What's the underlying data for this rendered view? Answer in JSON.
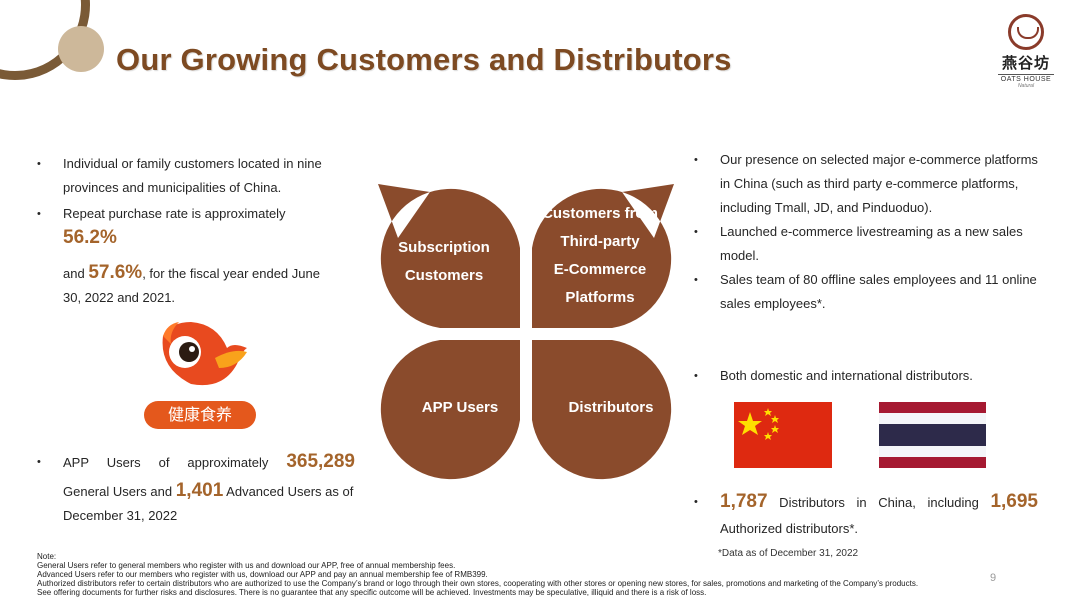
{
  "title": "Our Growing Customers and Distributors",
  "logo": {
    "cn": "燕谷坊",
    "en": "OATS HOUSE",
    "sub": "Natural"
  },
  "left": {
    "b1": "Individual or family customers located in nine provinces and municipalities of China.",
    "b2_a": "Repeat purchase rate is approximately ",
    "b2_v1": "56.2%",
    "b2_b": "and ",
    "b2_v2": "57.6%",
    "b2_c": ", for the fiscal year ended June 30, 2022 and 2021.",
    "app_badge": "健康食养",
    "b3_a": "APP Users of approximately ",
    "b3_v1": "365,289",
    "b3_b": "General Users and ",
    "b3_v2": "1,401",
    "b3_c": " Advanced Users as of December 31, 2022"
  },
  "diagram": {
    "tl": [
      "Subscription",
      "Customers"
    ],
    "tr": [
      "Customers from",
      "Third-party",
      "E-Commerce",
      "Platforms"
    ],
    "bl": "APP Users",
    "br": "Distributors",
    "color": "#8a4b2c"
  },
  "right": {
    "b1": "Our presence on selected major e-commerce platforms in China (such as third party e-commerce platforms, including Tmall, JD, and Pinduoduo).",
    "b2": "Launched e-commerce livestreaming as a new sales model.",
    "b3": "Sales team of 80 offline sales employees and 11 online sales employees*.",
    "b4": "Both domestic and international distributors.",
    "b5_v1": "1,787",
    "b5_a": " Distributors in China, including ",
    "b5_v2": "1,695",
    "b5_b": "Authorized distributors*.",
    "footnote": "*Data as of December 31, 2022"
  },
  "note": {
    "label": "Note:",
    "l1": "General Users refer to general members who register with us and download our APP, free of annual membership fees.",
    "l2": "Advanced Users refer to our members who register with us, download our APP and pay an annual membership fee of RMB399.",
    "l3": "Authorized distributors refer to certain distributors who are authorized to use the Company’s brand or logo through their own stores, cooperating with other stores or opening new stores, for sales, promotions and marketing of the Company’s products.",
    "l4": "See offering documents for further risks and disclosures. There is no guarantee that any specific outcome will be achieved. Investments may be speculative, illiquid and there is a risk of loss."
  },
  "page_number": "9"
}
